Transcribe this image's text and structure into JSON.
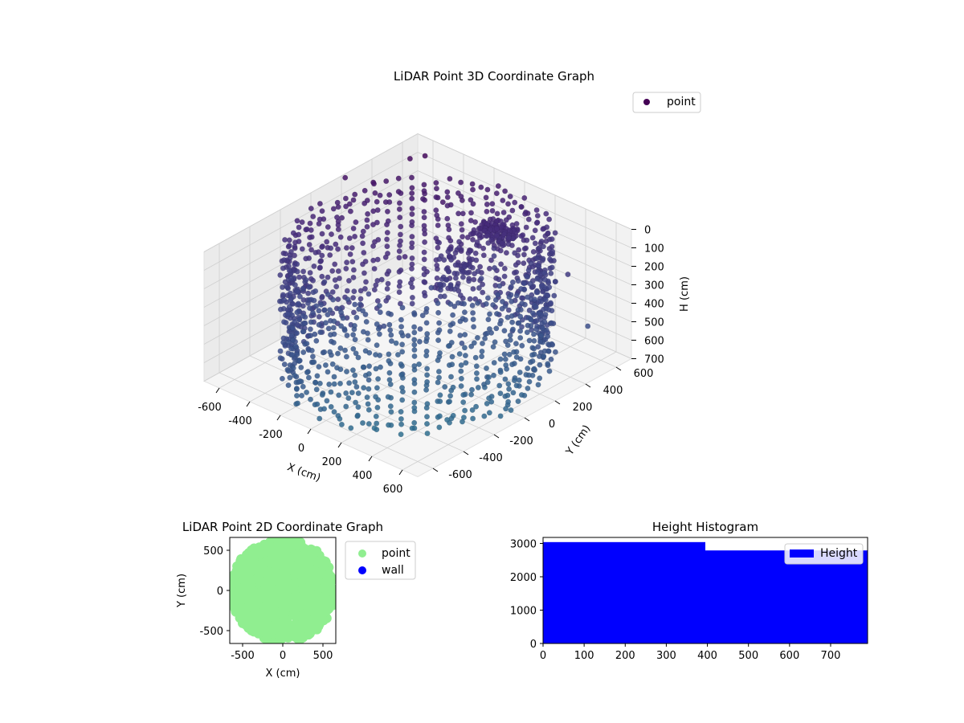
{
  "chart_data": [
    {
      "type": "scatter",
      "title": "LiDAR Point 3D Coordinate Graph",
      "xlabel": "X (cm)",
      "ylabel": "Y (cm)",
      "zlabel": "H (cm)",
      "x_ticks": [
        "-600",
        "-400",
        "-200",
        "0",
        "200",
        "400",
        "600"
      ],
      "y_ticks": [
        "-600",
        "-400",
        "-200",
        "0",
        "200",
        "400",
        "600"
      ],
      "z_ticks": [
        "0",
        "100",
        "200",
        "300",
        "400",
        "500",
        "600",
        "700"
      ],
      "xlim": [
        -700,
        700
      ],
      "ylim": [
        -700,
        700
      ],
      "zlim": [
        0,
        700
      ],
      "z_inverted": true,
      "colormap": "viridis",
      "legend": {
        "entries": [
          "point"
        ],
        "placement": "upper-right"
      },
      "series": [
        {
          "name": "point",
          "color": "#440154",
          "description_points": "cylindrical wall of points radius about 650 cm, heights 0 to 700 cm"
        }
      ]
    },
    {
      "type": "scatter",
      "title": "LiDAR Point 2D Coordinate Graph",
      "xlabel": "X (cm)",
      "ylabel": "Y (cm)",
      "x_ticks": [
        "-500",
        "0",
        "500"
      ],
      "y_ticks": [
        "-500",
        "0",
        "500"
      ],
      "xlim": [
        -660,
        660
      ],
      "ylim": [
        -660,
        660
      ],
      "legend": {
        "entries": [
          "point",
          "wall"
        ],
        "placement": "outside-right"
      },
      "series": [
        {
          "name": "point",
          "color": "#90ee90"
        },
        {
          "name": "wall",
          "color": "#0000ff"
        }
      ]
    },
    {
      "type": "bar",
      "title": "Height Histogram",
      "x_ticks": [
        "0",
        "100",
        "200",
        "300",
        "400",
        "500",
        "600",
        "700"
      ],
      "y_ticks": [
        "0",
        "1000",
        "2000",
        "3000"
      ],
      "xlim": [
        0,
        790
      ],
      "ylim": [
        0,
        3180
      ],
      "legend": {
        "entries": [
          "Height"
        ],
        "placement": "upper-right"
      },
      "series": [
        {
          "name": "Height",
          "color": "#0000ff",
          "bins": [
            [
              0,
              395
            ],
            [
              395,
              790
            ]
          ],
          "values": [
            3040,
            2790
          ]
        }
      ]
    }
  ]
}
